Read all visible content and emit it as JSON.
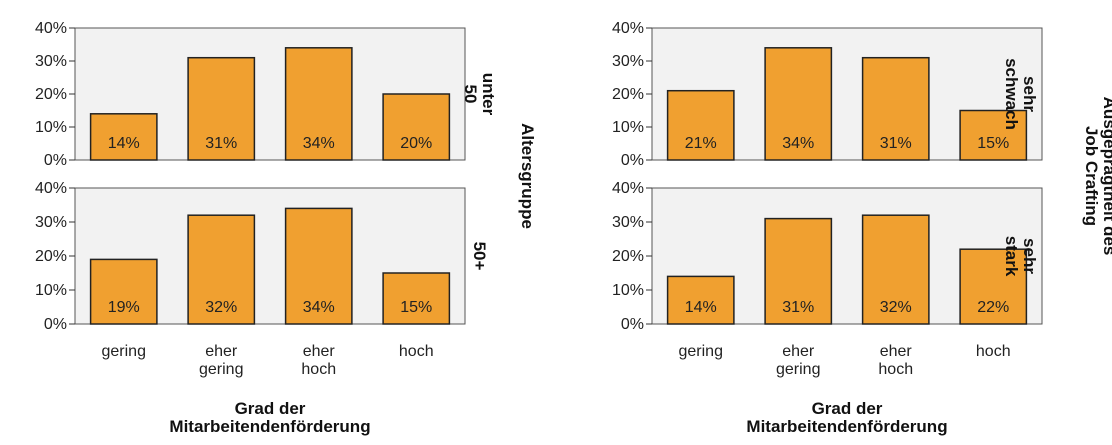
{
  "colors": {
    "bar": "#f0a030",
    "bar_stroke": "#222222",
    "plot_bg": "#f2f2f2"
  },
  "chart_data": [
    {
      "type": "bar",
      "categories": [
        "gering",
        "eher gering",
        "eher hoch",
        "hoch"
      ],
      "xlabel": "Grad der Mitarbeitendenförderung",
      "facet_label": "Altersgruppe",
      "ylim": [
        0,
        40
      ],
      "yticks": [
        "0%",
        "10%",
        "20%",
        "30%",
        "40%"
      ],
      "panels": [
        {
          "label": "unter 50",
          "values": [
            14,
            31,
            34,
            20
          ],
          "value_labels": [
            "14%",
            "31%",
            "34%",
            "20%"
          ]
        },
        {
          "label": "50+",
          "values": [
            19,
            32,
            34,
            15
          ],
          "value_labels": [
            "19%",
            "32%",
            "34%",
            "15%"
          ]
        }
      ]
    },
    {
      "type": "bar",
      "categories": [
        "gering",
        "eher gering",
        "eher hoch",
        "hoch"
      ],
      "xlabel": "Grad der Mitarbeitendenförderung",
      "facet_label": "Ausgeprägtheit des Job Crafting",
      "ylim": [
        0,
        40
      ],
      "yticks": [
        "0%",
        "10%",
        "20%",
        "30%",
        "40%"
      ],
      "panels": [
        {
          "label": "sehr schwach",
          "values": [
            21,
            34,
            31,
            15
          ],
          "value_labels": [
            "21%",
            "34%",
            "31%",
            "15%"
          ]
        },
        {
          "label": "sehr stark",
          "values": [
            14,
            31,
            32,
            22
          ],
          "value_labels": [
            "14%",
            "31%",
            "32%",
            "22%"
          ]
        }
      ]
    }
  ]
}
